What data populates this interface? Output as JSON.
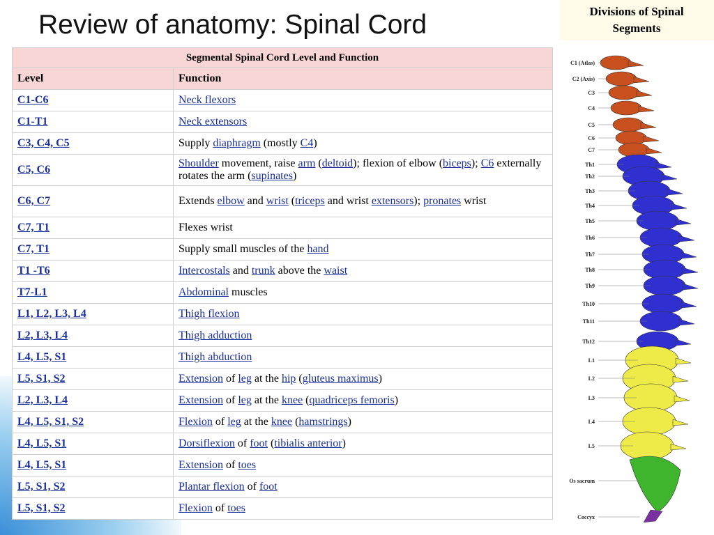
{
  "title": "Review of anatomy: Spinal Cord",
  "table": {
    "caption": "Segmental Spinal Cord Level and Function",
    "headers": [
      "Level",
      "Function"
    ],
    "rows": [
      {
        "level": "C1-C6",
        "function": [
          [
            "Neck flexors",
            true
          ]
        ]
      },
      {
        "level": "C1-T1",
        "function": [
          [
            "Neck extensors",
            true
          ]
        ]
      },
      {
        "level": "C3, C4, C5",
        "function": [
          [
            "Supply ",
            false
          ],
          [
            "diaphragm",
            true
          ],
          [
            " (mostly ",
            false
          ],
          [
            "C4",
            true
          ],
          [
            ")",
            false
          ]
        ]
      },
      {
        "level": "C5, C6",
        "function": [
          [
            "Shoulder",
            true
          ],
          [
            " movement, raise ",
            false
          ],
          [
            "arm",
            true
          ],
          [
            " (",
            false
          ],
          [
            "deltoid",
            true
          ],
          [
            "); flexion of elbow (",
            false
          ],
          [
            "biceps",
            true
          ],
          [
            "); ",
            false
          ],
          [
            "C6",
            true
          ],
          [
            " externally rotates the arm (",
            false
          ],
          [
            "supinates",
            true
          ],
          [
            ")",
            false
          ]
        ]
      },
      {
        "level": "C6, C7",
        "function": [
          [
            "Extends ",
            false
          ],
          [
            "elbow",
            true
          ],
          [
            " and ",
            false
          ],
          [
            "wrist",
            true
          ],
          [
            " (",
            false
          ],
          [
            "triceps",
            true
          ],
          [
            " and wrist ",
            false
          ],
          [
            "extensors",
            true
          ],
          [
            "); ",
            false
          ],
          [
            "pronates",
            true
          ],
          [
            " wrist",
            false
          ]
        ]
      },
      {
        "level": "C7, T1",
        "function": [
          [
            "Flexes wrist",
            false
          ]
        ]
      },
      {
        "level": "C7, T1",
        "function": [
          [
            "Supply small muscles of the ",
            false
          ],
          [
            "hand",
            true
          ]
        ]
      },
      {
        "level": "T1 -T6",
        "function": [
          [
            "Intercostals",
            true
          ],
          [
            " and ",
            false
          ],
          [
            "trunk",
            true
          ],
          [
            " above the ",
            false
          ],
          [
            "waist",
            true
          ]
        ]
      },
      {
        "level": "T7-L1",
        "function": [
          [
            "Abdominal",
            true
          ],
          [
            " muscles",
            false
          ]
        ]
      },
      {
        "level": "L1, L2, L3, L4",
        "function": [
          [
            "Thigh flexion",
            true
          ]
        ]
      },
      {
        "level": "L2, L3, L4",
        "function": [
          [
            "Thigh adduction",
            true
          ]
        ]
      },
      {
        "level": "L4, L5, S1",
        "function": [
          [
            "Thigh abduction",
            true
          ]
        ]
      },
      {
        "level": "L5, S1, S2",
        "function": [
          [
            "Extension",
            true
          ],
          [
            " of ",
            false
          ],
          [
            "leg",
            true
          ],
          [
            " at the ",
            false
          ],
          [
            "hip",
            true
          ],
          [
            " (",
            false
          ],
          [
            "gluteus maximus",
            true
          ],
          [
            ")",
            false
          ]
        ]
      },
      {
        "level": "L2, L3, L4",
        "function": [
          [
            "Extension",
            true
          ],
          [
            " of ",
            false
          ],
          [
            "leg",
            true
          ],
          [
            " at the ",
            false
          ],
          [
            "knee",
            true
          ],
          [
            " (",
            false
          ],
          [
            "quadriceps femoris",
            true
          ],
          [
            ")",
            false
          ]
        ]
      },
      {
        "level": "L4, L5, S1, S2",
        "function": [
          [
            "Flexion",
            true
          ],
          [
            " of ",
            false
          ],
          [
            "leg",
            true
          ],
          [
            " at the ",
            false
          ],
          [
            "knee",
            true
          ],
          [
            " (",
            false
          ],
          [
            "hamstrings",
            true
          ],
          [
            ")",
            false
          ]
        ]
      },
      {
        "level": "L4, L5, S1",
        "function": [
          [
            "Dorsiflexion",
            true
          ],
          [
            " of ",
            false
          ],
          [
            "foot",
            true
          ],
          [
            " (",
            false
          ],
          [
            "tibialis anterior",
            true
          ],
          [
            ")",
            false
          ]
        ]
      },
      {
        "level": "L4, L5, S1",
        "function": [
          [
            "Extension",
            true
          ],
          [
            " of ",
            false
          ],
          [
            "toes",
            true
          ]
        ]
      },
      {
        "level": "L5, S1, S2",
        "function": [
          [
            "Plantar flexion",
            true
          ],
          [
            " of ",
            false
          ],
          [
            "foot",
            true
          ]
        ]
      },
      {
        "level": "L5, S1, S2",
        "function": [
          [
            "Flexion",
            true
          ],
          [
            " of ",
            false
          ],
          [
            "toes",
            true
          ]
        ]
      }
    ]
  },
  "spine": {
    "title": [
      "Divisions of Spinal",
      "Segments"
    ],
    "labels": [
      "C1 (Atlas)",
      "C2 (Axis)",
      "C3",
      "C4",
      "C5",
      "C6",
      "C7",
      "Th1",
      "Th2",
      "Th3",
      "Th4",
      "Th5",
      "Th6",
      "Th7",
      "Th8",
      "Th9",
      "Th10",
      "Th11",
      "Th12",
      "L1",
      "L2",
      "L3",
      "L4",
      "L5",
      "Os sacrum",
      "Coccyx"
    ]
  }
}
